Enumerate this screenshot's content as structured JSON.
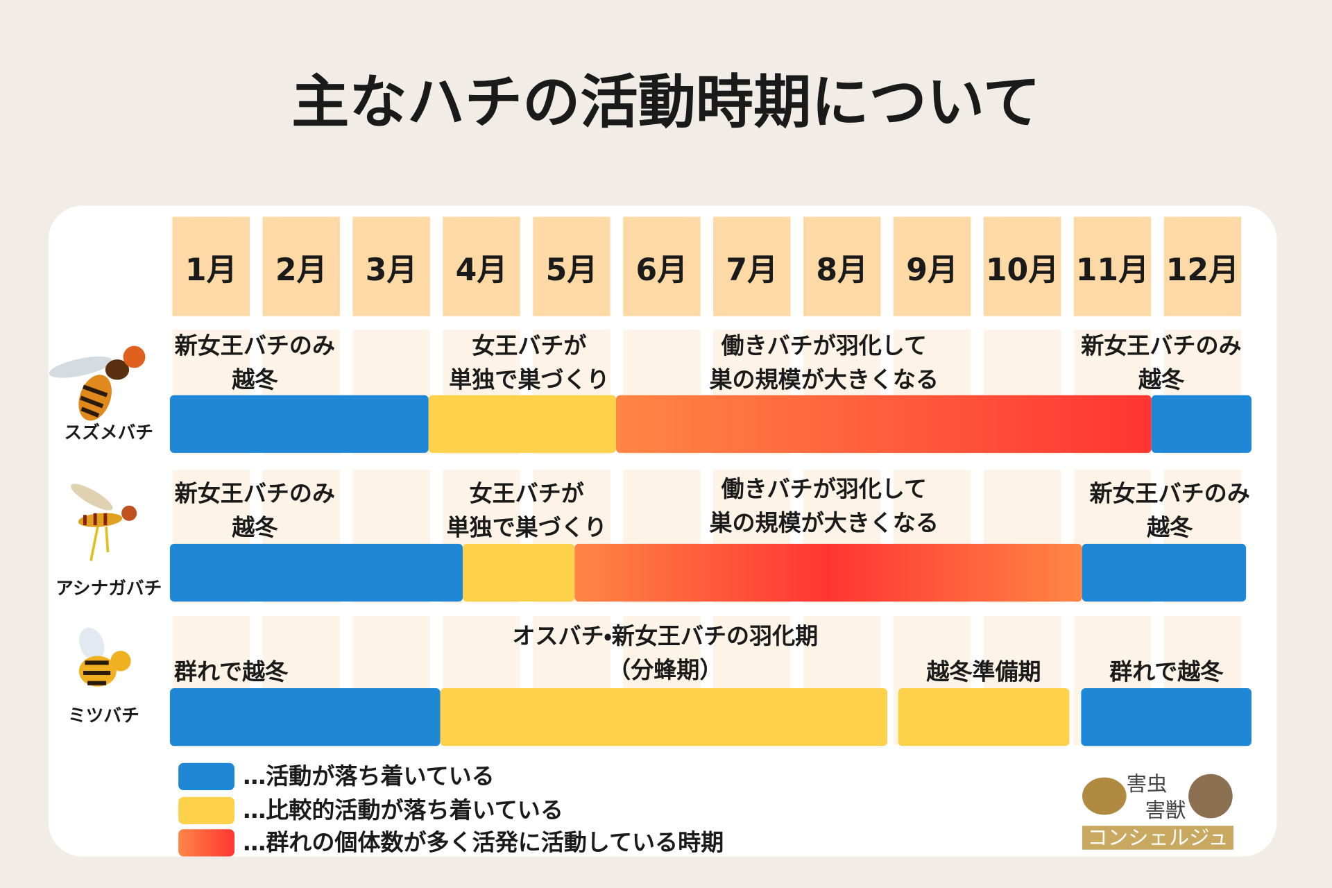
{
  "title": "主なハチの活動時期について",
  "months": [
    "1月",
    "2月",
    "3月",
    "4月",
    "5月",
    "6月",
    "7月",
    "8月",
    "9月",
    "10月",
    "11月",
    "12月"
  ],
  "rows": [
    {
      "name": "スズメバチ",
      "notes": [
        [
          "新女王バチのみ",
          "越冬"
        ],
        [
          "女王バチが",
          "単独で巣づくり"
        ],
        [
          "働きバチが羽化して",
          "巣の規模が大きくなる"
        ],
        [
          "新女王バチのみ",
          "越冬"
        ]
      ],
      "segments": [
        {
          "start": 0,
          "end": 2.87,
          "colors": [
            "#1e88d6"
          ]
        },
        {
          "start": 2.87,
          "end": 4.95,
          "colors": [
            "#fdd24a"
          ]
        },
        {
          "start": 4.95,
          "end": 10.89,
          "colors": [
            "#ff8646",
            "#ff3532"
          ]
        },
        {
          "start": 10.89,
          "end": 12,
          "colors": [
            "#1e88d6"
          ]
        }
      ]
    },
    {
      "name": "アシナガバチ",
      "notes": [
        [
          "新女王バチのみ",
          "越冬"
        ],
        [
          "女王バチが",
          "単独で巣づくり"
        ],
        [
          "働きバチが羽化して",
          "巣の規模が大きくなる"
        ],
        [
          "新女王バチのみ",
          "越冬"
        ]
      ],
      "segments": [
        {
          "start": 0,
          "end": 3.25,
          "colors": [
            "#1e88d6"
          ]
        },
        {
          "start": 3.25,
          "end": 4.49,
          "colors": [
            "#fdd24a"
          ]
        },
        {
          "start": 4.49,
          "end": 10.12,
          "colors": [
            "#ff8646",
            "#ff3532",
            "#ff8646"
          ]
        },
        {
          "start": 10.12,
          "end": 11.94,
          "colors": [
            "#1e88d6"
          ]
        }
      ]
    },
    {
      "name": "ミツバチ",
      "notes": [
        [
          "群れで越冬"
        ],
        [
          "オスバチ・新女王バチの羽化期",
          "（分蜂期）"
        ],
        [
          "越冬準備期"
        ],
        [
          "群れで越冬"
        ]
      ],
      "segments": [
        {
          "start": 0,
          "end": 3.0,
          "colors": [
            "#1e88d6"
          ]
        },
        {
          "start": 3.0,
          "end": 7.96,
          "colors": [
            "#fdd24a"
          ]
        },
        {
          "start": 8.08,
          "end": 9.98,
          "colors": [
            "#fdd24a"
          ]
        },
        {
          "start": 10.11,
          "end": 12,
          "colors": [
            "#1e88d6"
          ]
        }
      ]
    }
  ],
  "legend": [
    {
      "label": "…活動が落ち着いている",
      "colors": [
        "#1e88d6"
      ]
    },
    {
      "label": "…比較的活動が落ち着いている",
      "colors": [
        "#fdd24a"
      ]
    },
    {
      "label": "…群れの個体数が多く活発に活動している時期",
      "colors": [
        "#ff8646",
        "#ff3532"
      ]
    }
  ],
  "logo": {
    "line1": "害虫",
    "line2": "害獣",
    "line3": "コンシェルジュ"
  }
}
